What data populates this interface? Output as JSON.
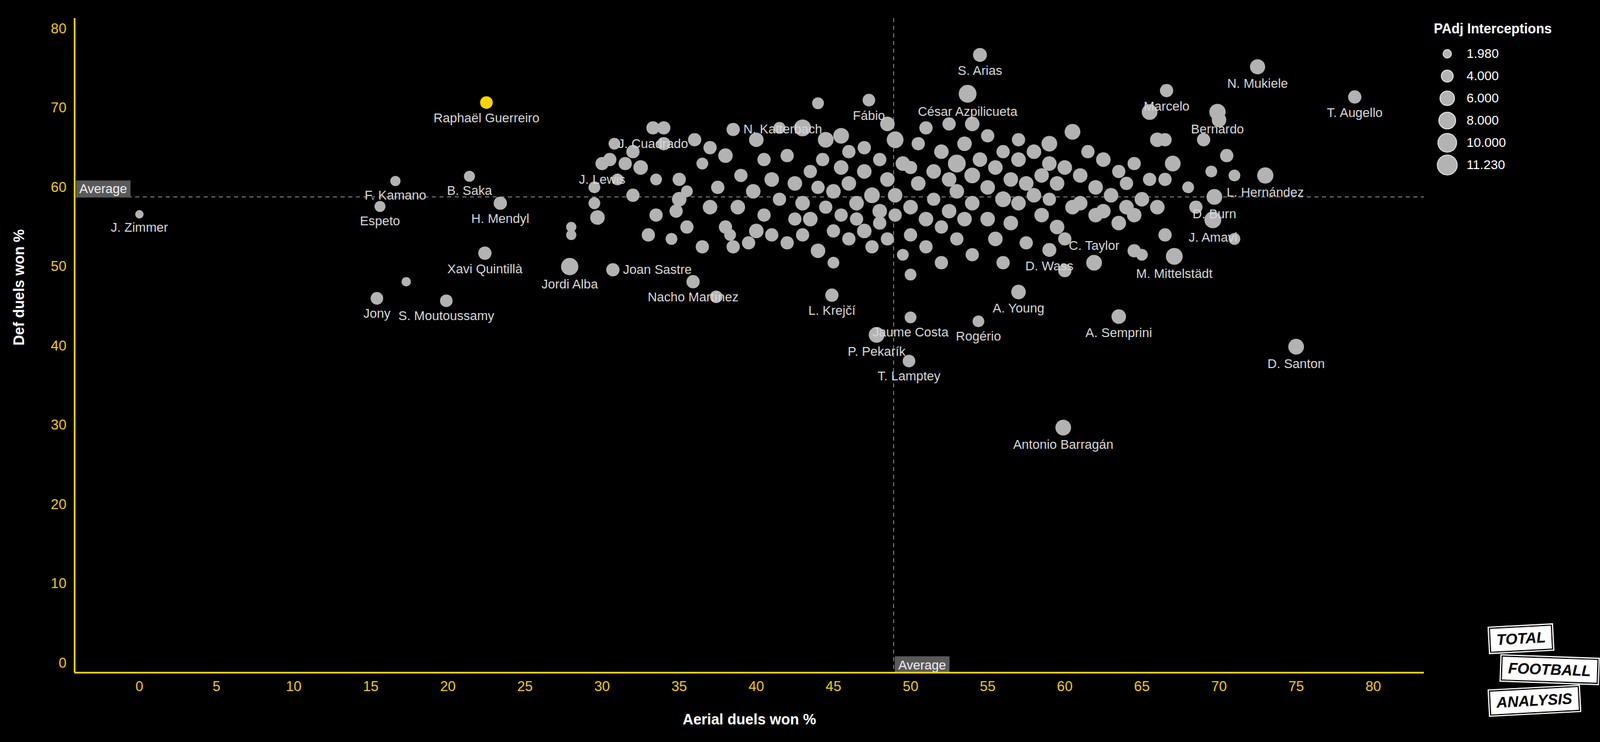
{
  "chart_data": {
    "type": "scatter",
    "x_label": "Aerial duels won %",
    "y_label": "Def duels won %",
    "xlim": [
      -4.2,
      83.3
    ],
    "ylim": [
      -1.2,
      81.3
    ],
    "xticks": [
      0,
      5,
      10,
      15,
      20,
      25,
      30,
      35,
      40,
      45,
      50,
      55,
      60,
      65,
      70,
      75,
      80
    ],
    "yticks": [
      0,
      10,
      20,
      30,
      40,
      50,
      60,
      70,
      80
    ],
    "color": "#b3b3b3",
    "averages": {
      "x": 48.9,
      "y": 58.8,
      "label": "Average"
    },
    "size_legend": {
      "title": "PAdj Interceptions",
      "entries": [
        {
          "value": 1.98,
          "label": "1.980"
        },
        {
          "value": 4,
          "label": "4.000"
        },
        {
          "value": 6,
          "label": "6.000"
        },
        {
          "value": 8,
          "label": "8.000"
        },
        {
          "value": 10,
          "label": "10.000"
        },
        {
          "value": 11.23,
          "label": "11.230"
        }
      ]
    },
    "logo": [
      "TOTAL",
      "FOOTBALL",
      "ANALYSIS"
    ],
    "points": [
      {
        "x": 0,
        "y": 56.6,
        "size": 2,
        "label": "J. Zimmer"
      },
      {
        "x": 16.6,
        "y": 60.8,
        "size": 3,
        "label": "F. Kamano"
      },
      {
        "x": 15.6,
        "y": 57.6,
        "size": 3.5,
        "label": "Espeto"
      },
      {
        "x": 22.5,
        "y": 70.7,
        "size": 4.5,
        "label": "Raphaël Guerreiro",
        "color": "#ffd400"
      },
      {
        "x": 21.4,
        "y": 61.4,
        "size": 3.5,
        "label": "B. Saka"
      },
      {
        "x": 23.4,
        "y": 58.0,
        "size": 5,
        "label": "H. Mendyl"
      },
      {
        "x": 22.4,
        "y": 51.7,
        "size": 5,
        "label": "Xavi Quintillà"
      },
      {
        "x": 15.4,
        "y": 46.0,
        "size": 4.5,
        "label": "Jony"
      },
      {
        "x": 19.9,
        "y": 45.7,
        "size": 4.5,
        "label": "S. Moutoussamy"
      },
      {
        "x": 27.9,
        "y": 50.0,
        "size": 8.5,
        "label": "Jordi Alba"
      },
      {
        "x": 30.7,
        "y": 49.6,
        "size": 5,
        "label": "Joan Sastre"
      },
      {
        "x": 35.9,
        "y": 48.1,
        "size": 5,
        "label": "Nacho Martínez"
      },
      {
        "x": 30.0,
        "y": 63.0,
        "size": 5,
        "label": "J. Lewis"
      },
      {
        "x": 33.3,
        "y": 67.5,
        "size": 5,
        "label": "J. Cuadrado"
      },
      {
        "x": 38.5,
        "y": 67.3,
        "size": 5,
        "label": "N. Katterbach"
      },
      {
        "x": 44.9,
        "y": 46.4,
        "size": 5,
        "label": "L. Krejčí"
      },
      {
        "x": 50.0,
        "y": 43.6,
        "size": 4,
        "label": "Jaume Costa"
      },
      {
        "x": 47.8,
        "y": 41.4,
        "size": 7,
        "label": "P. Pekarík"
      },
      {
        "x": 49.9,
        "y": 38.1,
        "size": 4.5,
        "label": "T. Lamptey"
      },
      {
        "x": 47.3,
        "y": 71.0,
        "size": 4.5,
        "label": "Fábio"
      },
      {
        "x": 54.5,
        "y": 76.7,
        "size": 5.5,
        "label": "S. Arias"
      },
      {
        "x": 53.7,
        "y": 71.8,
        "size": 9,
        "label": "César Azpilicueta"
      },
      {
        "x": 66.6,
        "y": 72.2,
        "size": 5,
        "label": "Marcelo"
      },
      {
        "x": 72.5,
        "y": 75.2,
        "size": 6.5,
        "label": "N. Mukiele"
      },
      {
        "x": 69.9,
        "y": 69.5,
        "size": 7.5,
        "label": "Bernardo"
      },
      {
        "x": 78.8,
        "y": 71.4,
        "size": 5,
        "label": "T. Augello"
      },
      {
        "x": 73.0,
        "y": 61.5,
        "size": 7.5,
        "label": "L. Hernández"
      },
      {
        "x": 69.7,
        "y": 58.8,
        "size": 7,
        "label": "D. Burn"
      },
      {
        "x": 69.6,
        "y": 55.9,
        "size": 8,
        "label": "J. Amavi"
      },
      {
        "x": 67.1,
        "y": 51.3,
        "size": 8,
        "label": "M. Mittelstädt"
      },
      {
        "x": 59.0,
        "y": 52.1,
        "size": 5.5,
        "label": "D. Wass"
      },
      {
        "x": 61.9,
        "y": 50.5,
        "size": 7,
        "label": "C. Taylor"
      },
      {
        "x": 57.0,
        "y": 46.8,
        "size": 6,
        "label": "A. Young"
      },
      {
        "x": 54.4,
        "y": 43.1,
        "size": 4,
        "label": "Rogério"
      },
      {
        "x": 63.5,
        "y": 43.7,
        "size": 6,
        "label": "A. Semprini"
      },
      {
        "x": 75.0,
        "y": 39.9,
        "size": 7,
        "label": "D. Santon"
      },
      {
        "x": 59.9,
        "y": 29.7,
        "size": 7,
        "label": "Antonio Barragán"
      },
      {
        "x": 17.3,
        "y": 48.1,
        "size": 2.5
      },
      {
        "x": 37.4,
        "y": 46.2,
        "size": 4.5
      },
      {
        "x": 28,
        "y": 54,
        "size": 3
      },
      {
        "x": 28,
        "y": 55,
        "size": 3
      },
      {
        "x": 29.5,
        "y": 60,
        "size": 4
      },
      {
        "x": 29.5,
        "y": 58,
        "size": 4
      },
      {
        "x": 29.7,
        "y": 56.2,
        "size": 6
      },
      {
        "x": 30.5,
        "y": 63.5,
        "size": 5
      },
      {
        "x": 30.8,
        "y": 65.5,
        "size": 4
      },
      {
        "x": 31,
        "y": 61,
        "size": 4
      },
      {
        "x": 31.5,
        "y": 63,
        "size": 5
      },
      {
        "x": 32,
        "y": 59,
        "size": 5
      },
      {
        "x": 32,
        "y": 64.5,
        "size": 5
      },
      {
        "x": 32.5,
        "y": 62.5,
        "size": 6
      },
      {
        "x": 33,
        "y": 54,
        "size": 5
      },
      {
        "x": 33.5,
        "y": 56.5,
        "size": 5
      },
      {
        "x": 33.5,
        "y": 61,
        "size": 4
      },
      {
        "x": 34,
        "y": 65.5,
        "size": 5
      },
      {
        "x": 34,
        "y": 67.5,
        "size": 5
      },
      {
        "x": 34.5,
        "y": 53.5,
        "size": 4
      },
      {
        "x": 34.8,
        "y": 57,
        "size": 5
      },
      {
        "x": 35,
        "y": 61,
        "size": 5
      },
      {
        "x": 35,
        "y": 58.5,
        "size": 6
      },
      {
        "x": 35.5,
        "y": 55,
        "size": 5
      },
      {
        "x": 35.5,
        "y": 59.5,
        "size": 4
      },
      {
        "x": 36,
        "y": 66,
        "size": 5
      },
      {
        "x": 36.5,
        "y": 52.5,
        "size": 5
      },
      {
        "x": 36.5,
        "y": 63,
        "size": 4
      },
      {
        "x": 37,
        "y": 57.5,
        "size": 6
      },
      {
        "x": 37,
        "y": 65,
        "size": 5
      },
      {
        "x": 37.5,
        "y": 60,
        "size": 5
      },
      {
        "x": 38,
        "y": 64,
        "size": 6
      },
      {
        "x": 38,
        "y": 55,
        "size": 5
      },
      {
        "x": 38.3,
        "y": 54,
        "size": 4
      },
      {
        "x": 38.5,
        "y": 52.5,
        "size": 5
      },
      {
        "x": 38.8,
        "y": 57.5,
        "size": 6
      },
      {
        "x": 39,
        "y": 61.5,
        "size": 5
      },
      {
        "x": 39.5,
        "y": 53,
        "size": 5
      },
      {
        "x": 39.8,
        "y": 59.5,
        "size": 6
      },
      {
        "x": 40,
        "y": 66,
        "size": 6
      },
      {
        "x": 40,
        "y": 54.5,
        "size": 6
      },
      {
        "x": 40.5,
        "y": 63.5,
        "size": 5
      },
      {
        "x": 40.5,
        "y": 56.5,
        "size": 5
      },
      {
        "x": 41,
        "y": 61,
        "size": 6
      },
      {
        "x": 41,
        "y": 54,
        "size": 5
      },
      {
        "x": 41.5,
        "y": 67.5,
        "size": 4
      },
      {
        "x": 41.5,
        "y": 58.5,
        "size": 5
      },
      {
        "x": 42,
        "y": 64,
        "size": 5
      },
      {
        "x": 42,
        "y": 53,
        "size": 5
      },
      {
        "x": 42.5,
        "y": 60.5,
        "size": 6
      },
      {
        "x": 42.5,
        "y": 56,
        "size": 5
      },
      {
        "x": 43,
        "y": 67.5,
        "size": 8
      },
      {
        "x": 43,
        "y": 58,
        "size": 6
      },
      {
        "x": 43,
        "y": 54,
        "size": 5
      },
      {
        "x": 43.5,
        "y": 62,
        "size": 5
      },
      {
        "x": 43.5,
        "y": 56,
        "size": 6
      },
      {
        "x": 44,
        "y": 60,
        "size": 5
      },
      {
        "x": 44,
        "y": 52,
        "size": 6
      },
      {
        "x": 44.3,
        "y": 63.5,
        "size": 5
      },
      {
        "x": 44.5,
        "y": 57.5,
        "size": 5
      },
      {
        "x": 44.5,
        "y": 66,
        "size": 7
      },
      {
        "x": 45,
        "y": 59.5,
        "size": 6
      },
      {
        "x": 45,
        "y": 54.5,
        "size": 5
      },
      {
        "x": 45,
        "y": 50.5,
        "size": 4
      },
      {
        "x": 45.5,
        "y": 62.5,
        "size": 6
      },
      {
        "x": 45.5,
        "y": 56.5,
        "size": 5
      },
      {
        "x": 45.5,
        "y": 66.5,
        "size": 7
      },
      {
        "x": 46,
        "y": 64.5,
        "size": 5
      },
      {
        "x": 46,
        "y": 60.5,
        "size": 6
      },
      {
        "x": 46,
        "y": 53.5,
        "size": 5
      },
      {
        "x": 46.5,
        "y": 58,
        "size": 6
      },
      {
        "x": 46.5,
        "y": 56,
        "size": 5
      },
      {
        "x": 47,
        "y": 62,
        "size": 6
      },
      {
        "x": 47,
        "y": 65,
        "size": 5
      },
      {
        "x": 47,
        "y": 54.5,
        "size": 6
      },
      {
        "x": 47.5,
        "y": 59,
        "size": 7
      },
      {
        "x": 47.5,
        "y": 52.5,
        "size": 5
      },
      {
        "x": 48,
        "y": 63.5,
        "size": 5
      },
      {
        "x": 48,
        "y": 57,
        "size": 6
      },
      {
        "x": 48,
        "y": 55.5,
        "size": 5
      },
      {
        "x": 48.5,
        "y": 61,
        "size": 6
      },
      {
        "x": 48.5,
        "y": 53.5,
        "size": 5
      },
      {
        "x": 48.5,
        "y": 68,
        "size": 6
      },
      {
        "x": 44,
        "y": 70.6,
        "size": 4
      },
      {
        "x": 49,
        "y": 66,
        "size": 8
      },
      {
        "x": 49,
        "y": 59,
        "size": 6
      },
      {
        "x": 49,
        "y": 56.5,
        "size": 5
      },
      {
        "x": 49.5,
        "y": 63,
        "size": 6
      },
      {
        "x": 49.5,
        "y": 51.5,
        "size": 4
      },
      {
        "x": 50,
        "y": 62.5,
        "size": 5
      },
      {
        "x": 50,
        "y": 57.5,
        "size": 6
      },
      {
        "x": 50,
        "y": 54,
        "size": 5
      },
      {
        "x": 50,
        "y": 49,
        "size": 4
      },
      {
        "x": 50.5,
        "y": 60.5,
        "size": 6
      },
      {
        "x": 50.5,
        "y": 65.5,
        "size": 5
      },
      {
        "x": 51,
        "y": 56,
        "size": 6
      },
      {
        "x": 51,
        "y": 52.5,
        "size": 5
      },
      {
        "x": 51,
        "y": 67.5,
        "size": 5
      },
      {
        "x": 51.5,
        "y": 62,
        "size": 6
      },
      {
        "x": 51.5,
        "y": 58.5,
        "size": 5
      },
      {
        "x": 52,
        "y": 64.5,
        "size": 6
      },
      {
        "x": 52,
        "y": 55,
        "size": 5
      },
      {
        "x": 52,
        "y": 50.5,
        "size": 5
      },
      {
        "x": 52.5,
        "y": 61,
        "size": 6
      },
      {
        "x": 52.5,
        "y": 57,
        "size": 6
      },
      {
        "x": 52.5,
        "y": 68,
        "size": 5
      },
      {
        "x": 53,
        "y": 63,
        "size": 9
      },
      {
        "x": 53,
        "y": 59.5,
        "size": 6
      },
      {
        "x": 53,
        "y": 53.5,
        "size": 5
      },
      {
        "x": 53.5,
        "y": 65.5,
        "size": 6
      },
      {
        "x": 53.5,
        "y": 56,
        "size": 6
      },
      {
        "x": 54,
        "y": 61.5,
        "size": 7
      },
      {
        "x": 54,
        "y": 58,
        "size": 6
      },
      {
        "x": 54,
        "y": 51.5,
        "size": 5
      },
      {
        "x": 54,
        "y": 68,
        "size": 6
      },
      {
        "x": 54.5,
        "y": 63.5,
        "size": 6
      },
      {
        "x": 55,
        "y": 60,
        "size": 6
      },
      {
        "x": 55,
        "y": 56,
        "size": 6
      },
      {
        "x": 55,
        "y": 66.5,
        "size": 5
      },
      {
        "x": 55.5,
        "y": 62.5,
        "size": 6
      },
      {
        "x": 55.5,
        "y": 53.5,
        "size": 6
      },
      {
        "x": 56,
        "y": 58.5,
        "size": 7
      },
      {
        "x": 56,
        "y": 64.5,
        "size": 5
      },
      {
        "x": 56,
        "y": 50.5,
        "size": 5
      },
      {
        "x": 56.5,
        "y": 61,
        "size": 6
      },
      {
        "x": 56.5,
        "y": 55.5,
        "size": 6
      },
      {
        "x": 57,
        "y": 63.5,
        "size": 6
      },
      {
        "x": 57,
        "y": 58,
        "size": 6
      },
      {
        "x": 57,
        "y": 66,
        "size": 5
      },
      {
        "x": 57.5,
        "y": 60.5,
        "size": 6
      },
      {
        "x": 57.5,
        "y": 53,
        "size": 5
      },
      {
        "x": 58,
        "y": 64.5,
        "size": 6
      },
      {
        "x": 58,
        "y": 59,
        "size": 6
      },
      {
        "x": 58.5,
        "y": 61.5,
        "size": 6
      },
      {
        "x": 58.5,
        "y": 56.5,
        "size": 6
      },
      {
        "x": 59,
        "y": 63,
        "size": 6
      },
      {
        "x": 59,
        "y": 58.5,
        "size": 5
      },
      {
        "x": 59,
        "y": 65.5,
        "size": 7
      },
      {
        "x": 59.5,
        "y": 60.5,
        "size": 6
      },
      {
        "x": 59.5,
        "y": 55,
        "size": 6
      },
      {
        "x": 60,
        "y": 62.5,
        "size": 6
      },
      {
        "x": 60,
        "y": 49.5,
        "size": 5
      },
      {
        "x": 60.5,
        "y": 67,
        "size": 7
      },
      {
        "x": 60.5,
        "y": 57.5,
        "size": 6
      },
      {
        "x": 60,
        "y": 53.5,
        "size": 5
      },
      {
        "x": 61,
        "y": 61.5,
        "size": 6
      },
      {
        "x": 61,
        "y": 58,
        "size": 6
      },
      {
        "x": 61.5,
        "y": 64.5,
        "size": 5
      },
      {
        "x": 62,
        "y": 56.5,
        "size": 6
      },
      {
        "x": 62,
        "y": 60,
        "size": 6
      },
      {
        "x": 62.5,
        "y": 63.5,
        "size": 6
      },
      {
        "x": 62.5,
        "y": 57,
        "size": 6
      },
      {
        "x": 63,
        "y": 59,
        "size": 6
      },
      {
        "x": 63.5,
        "y": 62,
        "size": 5
      },
      {
        "x": 63.5,
        "y": 55.5,
        "size": 6
      },
      {
        "x": 64,
        "y": 57.5,
        "size": 6
      },
      {
        "x": 64,
        "y": 60.5,
        "size": 5
      },
      {
        "x": 64.5,
        "y": 63,
        "size": 5
      },
      {
        "x": 64.5,
        "y": 56.5,
        "size": 6
      },
      {
        "x": 65,
        "y": 58.5,
        "size": 6
      },
      {
        "x": 65.5,
        "y": 69.5,
        "size": 7
      },
      {
        "x": 65.5,
        "y": 61,
        "size": 5
      },
      {
        "x": 66,
        "y": 66,
        "size": 6
      },
      {
        "x": 66,
        "y": 57.5,
        "size": 6
      },
      {
        "x": 66.5,
        "y": 66,
        "size": 5
      },
      {
        "x": 66.5,
        "y": 61,
        "size": 5
      },
      {
        "x": 66.5,
        "y": 54,
        "size": 5
      },
      {
        "x": 67,
        "y": 63,
        "size": 7
      },
      {
        "x": 64.5,
        "y": 52,
        "size": 5
      },
      {
        "x": 65,
        "y": 51.5,
        "size": 4
      },
      {
        "x": 69,
        "y": 66,
        "size": 5
      },
      {
        "x": 69.5,
        "y": 62,
        "size": 4
      },
      {
        "x": 70,
        "y": 68.5,
        "size": 6
      },
      {
        "x": 70.5,
        "y": 64,
        "size": 5
      },
      {
        "x": 71,
        "y": 61.5,
        "size": 4
      },
      {
        "x": 68,
        "y": 60,
        "size": 4
      },
      {
        "x": 68.5,
        "y": 57.5,
        "size": 5
      },
      {
        "x": 71,
        "y": 53.5,
        "size": 4
      }
    ]
  }
}
